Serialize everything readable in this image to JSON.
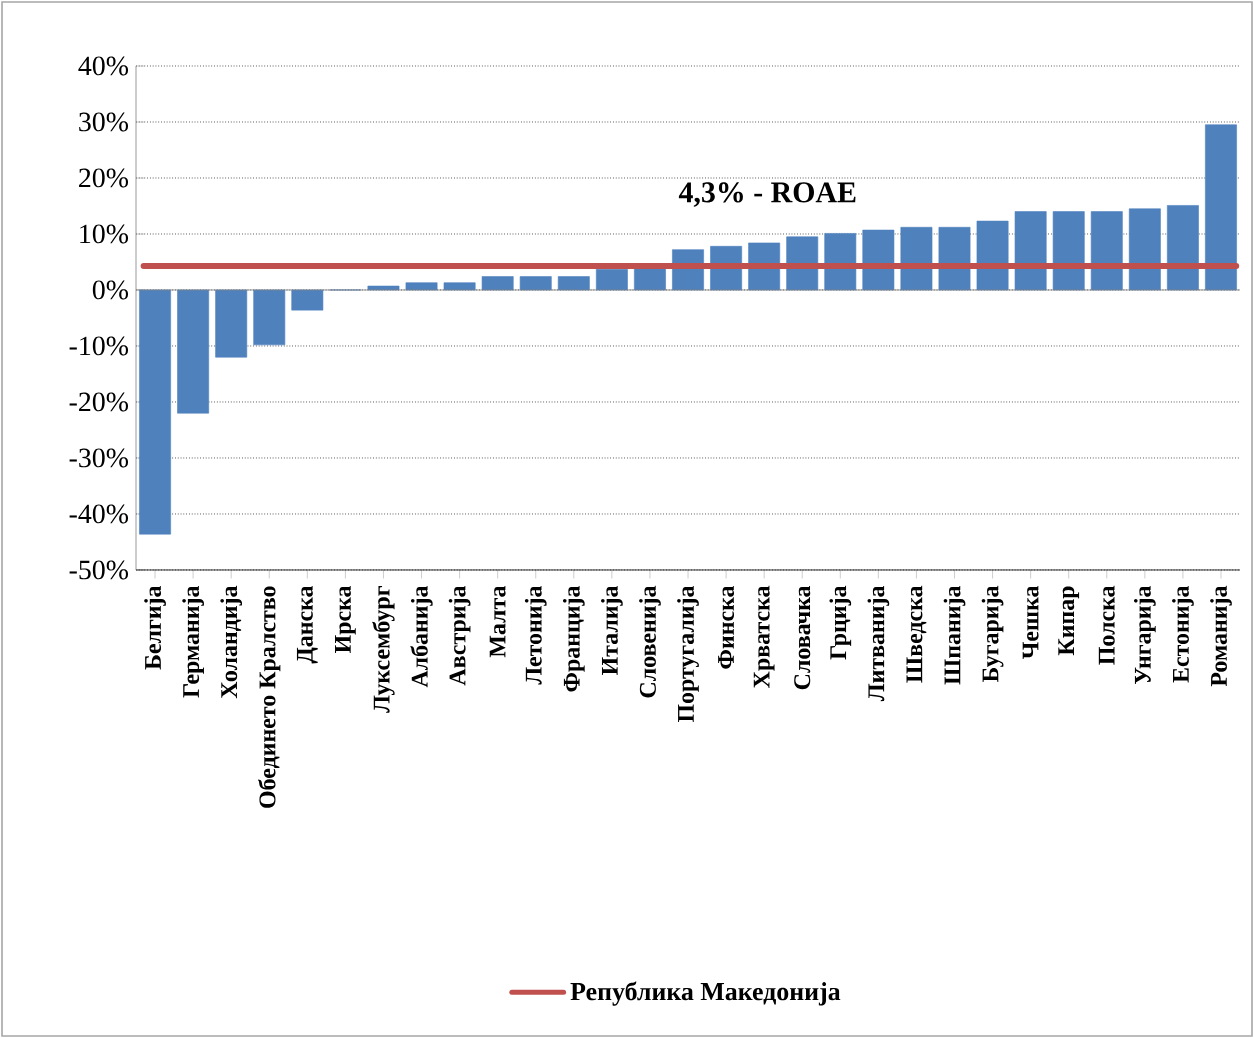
{
  "chart_data": {
    "type": "bar",
    "categories": [
      "Белгија",
      "Германија",
      "Холандија",
      "Обединето Кралство",
      "Данска",
      "Ирска",
      "Луксембург",
      "Албанија",
      "Австрија",
      "Малта",
      "Летонија",
      "Франција",
      "Италија",
      "Словенија",
      "Португалија",
      "Финска",
      "Хрватска",
      "Словачка",
      "Грција",
      "Литванија",
      "Шведска",
      "Шпанија",
      "Бугарија",
      "Чешка",
      "Кипар",
      "Полска",
      "Унгарија",
      "Естонија",
      "Романија"
    ],
    "values": [
      -43.6,
      -22,
      -12,
      -9.8,
      -3.6,
      0,
      0.7,
      1.3,
      1.3,
      2.4,
      2.4,
      2.4,
      3.7,
      4.3,
      7.2,
      7.8,
      8.4,
      9.5,
      10.1,
      10.7,
      11.2,
      11.2,
      12.3,
      14,
      14,
      14,
      14.5,
      15.1,
      29.5
    ],
    "color": "#4f81bd",
    "ylim": [
      -50,
      40
    ],
    "yticks": [
      {
        "value": -50,
        "label": "-50%"
      },
      {
        "value": -40,
        "label": "-40%"
      },
      {
        "value": -30,
        "label": "-30%"
      },
      {
        "value": -20,
        "label": "-20%"
      },
      {
        "value": -10,
        "label": "-10%"
      },
      {
        "value": 0,
        "label": "0%"
      },
      {
        "value": 10,
        "label": "10%"
      },
      {
        "value": 20,
        "label": "20%"
      },
      {
        "value": 30,
        "label": "30%"
      },
      {
        "value": 40,
        "label": "40%"
      }
    ],
    "grid": "y",
    "ref_lines": [
      {
        "axis": "y",
        "value": 4.3,
        "label": "Република Македонија",
        "color": "#c0504d"
      }
    ],
    "annotations": [
      "4,3% - ROAE"
    ],
    "legend": "bottom"
  }
}
